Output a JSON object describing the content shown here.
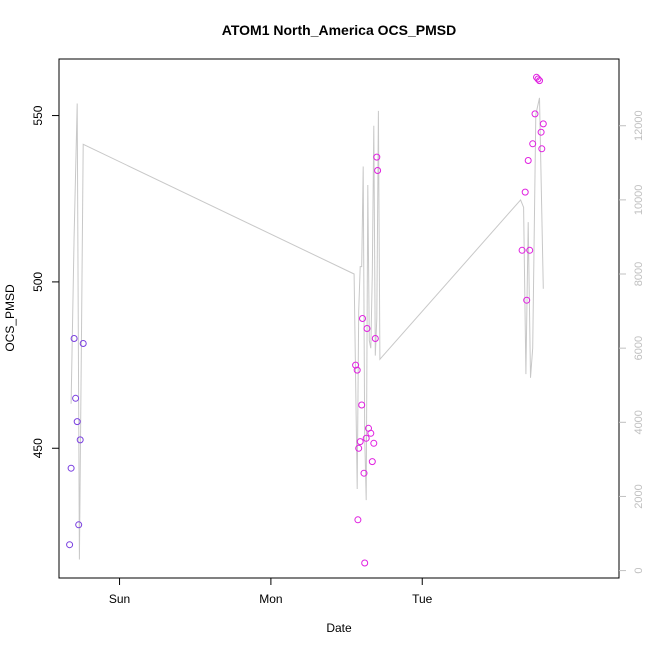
{
  "chart_data": {
    "type": "scatter",
    "title": "ATOM1 North_America OCS_PMSD",
    "xlabel": "Date",
    "ylabel": "OCS_PMSD",
    "x_ticks": [
      {
        "x": 1.0,
        "label": "Sun"
      },
      {
        "x": 2.0,
        "label": "Mon"
      },
      {
        "x": 3.0,
        "label": "Tue"
      }
    ],
    "xlim": [
      0.6,
      4.3
    ],
    "y_left": {
      "lim": [
        411,
        567
      ],
      "ticks": [
        450,
        500,
        550
      ]
    },
    "y_right": {
      "lim": [
        -200,
        13800
      ],
      "ticks": [
        0,
        2000,
        4000,
        6000,
        8000,
        10000,
        12000
      ]
    },
    "series": [
      {
        "axis": "left",
        "color": "#7a3fe0",
        "marker": "open-circle",
        "points": [
          [
            0.67,
            421
          ],
          [
            0.68,
            444
          ],
          [
            0.7,
            483
          ],
          [
            0.71,
            465
          ],
          [
            0.72,
            458
          ],
          [
            0.73,
            427
          ],
          [
            0.74,
            452.5
          ],
          [
            0.76,
            481.5
          ]
        ]
      },
      {
        "axis": "left",
        "color": "#e020e0",
        "marker": "open-circle",
        "points": [
          [
            2.56,
            475
          ],
          [
            2.57,
            473.5
          ],
          [
            2.575,
            428.5
          ],
          [
            2.58,
            450
          ],
          [
            2.59,
            452
          ],
          [
            2.6,
            463
          ],
          [
            2.605,
            489
          ],
          [
            2.615,
            442.5
          ],
          [
            2.62,
            415.5
          ],
          [
            2.63,
            453
          ],
          [
            2.635,
            486
          ],
          [
            2.645,
            456
          ],
          [
            2.66,
            454.5
          ],
          [
            2.67,
            446
          ],
          [
            2.68,
            451.5
          ],
          [
            2.69,
            483
          ],
          [
            2.7,
            537.5
          ],
          [
            2.705,
            533.5
          ],
          [
            3.66,
            509.5
          ],
          [
            3.68,
            527
          ],
          [
            3.69,
            494.5
          ],
          [
            3.7,
            536.5
          ],
          [
            3.71,
            509.5
          ],
          [
            3.73,
            541.5
          ],
          [
            3.745,
            550.5
          ],
          [
            3.755,
            561.5
          ],
          [
            3.765,
            561
          ],
          [
            3.775,
            560.5
          ],
          [
            3.785,
            545
          ],
          [
            3.79,
            540
          ],
          [
            3.8,
            547.5
          ]
        ]
      },
      {
        "axis": "right",
        "color": "#c8c8c8",
        "marker": "line",
        "points": [
          [
            0.68,
            4500
          ],
          [
            0.7,
            9000
          ],
          [
            0.72,
            12600
          ],
          [
            0.735,
            300
          ],
          [
            0.75,
            7000
          ],
          [
            0.76,
            11500
          ],
          [
            2.55,
            8000
          ],
          [
            2.57,
            2200
          ],
          [
            2.58,
            7000
          ],
          [
            2.59,
            8200
          ],
          [
            2.6,
            8200
          ],
          [
            2.61,
            10900
          ],
          [
            2.62,
            3600
          ],
          [
            2.63,
            1900
          ],
          [
            2.64,
            10400
          ],
          [
            2.65,
            6200
          ],
          [
            2.66,
            6000
          ],
          [
            2.67,
            8000
          ],
          [
            2.68,
            12000
          ],
          [
            2.69,
            5800
          ],
          [
            2.7,
            6800
          ],
          [
            2.71,
            12400
          ],
          [
            2.72,
            5700
          ],
          [
            3.65,
            10000
          ],
          [
            3.67,
            9800
          ],
          [
            3.685,
            5300
          ],
          [
            3.7,
            9400
          ],
          [
            3.715,
            5200
          ],
          [
            3.73,
            6000
          ],
          [
            3.75,
            12300
          ],
          [
            3.775,
            12750
          ],
          [
            3.8,
            7600
          ]
        ]
      }
    ]
  }
}
